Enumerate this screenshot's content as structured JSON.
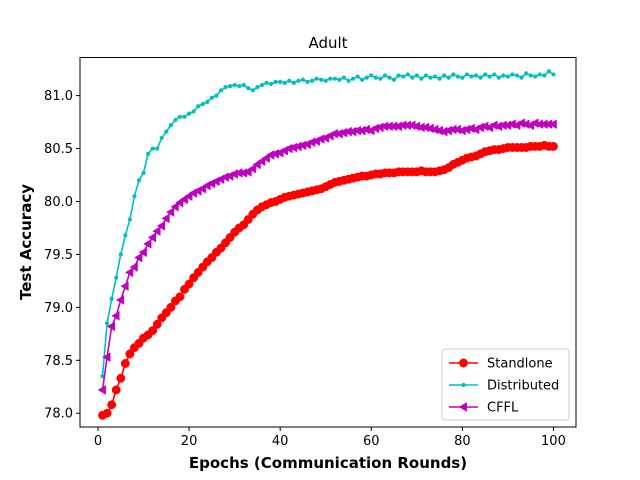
{
  "chart_data": {
    "type": "line",
    "title": "Adult",
    "xlabel": "Epochs (Communication Rounds)",
    "ylabel": "Test Accuracy",
    "xlim": [
      -3.95,
      104.95
    ],
    "ylim": [
      77.87,
      81.36
    ],
    "xticks": [
      0,
      20,
      40,
      60,
      80,
      100
    ],
    "yticks": [
      78.0,
      78.5,
      79.0,
      79.5,
      80.0,
      80.5,
      81.0
    ],
    "ytick_labels": [
      "78.0",
      "78.5",
      "79.0",
      "79.5",
      "80.0",
      "80.5",
      "81.0"
    ],
    "grid": false,
    "legend_position": "lower-right",
    "series": [
      {
        "name": "Standlone",
        "color": "#ff0000",
        "marker": "circle",
        "x_start": 1,
        "x_step": 1,
        "values": [
          77.98,
          78.0,
          78.08,
          78.22,
          78.33,
          78.47,
          78.56,
          78.62,
          78.66,
          78.71,
          78.74,
          78.78,
          78.84,
          78.9,
          78.95,
          79.0,
          79.06,
          79.1,
          79.17,
          79.22,
          79.28,
          79.33,
          79.38,
          79.43,
          79.47,
          79.52,
          79.56,
          79.61,
          79.66,
          79.71,
          79.75,
          79.78,
          79.83,
          79.88,
          79.92,
          79.95,
          79.97,
          79.99,
          80.0,
          80.02,
          80.04,
          80.05,
          80.06,
          80.07,
          80.08,
          80.09,
          80.1,
          80.11,
          80.12,
          80.14,
          80.16,
          80.18,
          80.19,
          80.2,
          80.21,
          80.22,
          80.23,
          80.24,
          80.24,
          80.25,
          80.26,
          80.26,
          80.27,
          80.27,
          80.27,
          80.28,
          80.28,
          80.28,
          80.28,
          80.28,
          80.29,
          80.28,
          80.28,
          80.28,
          80.29,
          80.3,
          80.32,
          80.35,
          80.37,
          80.39,
          80.41,
          80.42,
          80.43,
          80.45,
          80.47,
          80.48,
          80.49,
          80.49,
          80.5,
          80.51,
          80.51,
          80.51,
          80.51,
          80.51,
          80.52,
          80.52,
          80.52,
          80.53,
          80.52,
          80.52
        ]
      },
      {
        "name": "Distributed",
        "color": "#00bfbf",
        "marker": "point",
        "x_start": 1,
        "x_step": 1,
        "values": [
          78.35,
          78.85,
          79.08,
          79.28,
          79.5,
          79.68,
          79.83,
          80.05,
          80.2,
          80.27,
          80.45,
          80.5,
          80.5,
          80.6,
          80.66,
          80.72,
          80.77,
          80.8,
          80.8,
          80.83,
          80.85,
          80.9,
          80.92,
          80.94,
          80.98,
          81.0,
          81.05,
          81.08,
          81.09,
          81.1,
          81.09,
          81.1,
          81.07,
          81.05,
          81.08,
          81.1,
          81.12,
          81.11,
          81.13,
          81.13,
          81.12,
          81.14,
          81.12,
          81.14,
          81.15,
          81.13,
          81.14,
          81.16,
          81.15,
          81.14,
          81.16,
          81.16,
          81.15,
          81.17,
          81.14,
          81.16,
          81.18,
          81.15,
          81.17,
          81.19,
          81.17,
          81.16,
          81.19,
          81.17,
          81.15,
          81.19,
          81.18,
          81.2,
          81.17,
          81.19,
          81.16,
          81.19,
          81.17,
          81.18,
          81.16,
          81.19,
          81.17,
          81.2,
          81.18,
          81.17,
          81.2,
          81.18,
          81.19,
          81.17,
          81.2,
          81.18,
          81.2,
          81.17,
          81.19,
          81.18,
          81.2,
          81.19,
          81.17,
          81.21,
          81.19,
          81.18,
          81.2,
          81.19,
          81.23,
          81.2
        ]
      },
      {
        "name": "CFFL",
        "color": "#bf00bf",
        "marker": "triangle-left",
        "x_start": 1,
        "x_step": 1,
        "values": [
          78.22,
          78.53,
          78.82,
          78.92,
          79.07,
          79.2,
          79.33,
          79.38,
          79.47,
          79.52,
          79.6,
          79.66,
          79.72,
          79.77,
          79.84,
          79.9,
          79.95,
          79.99,
          80.02,
          80.05,
          80.08,
          80.1,
          80.12,
          80.15,
          80.17,
          80.19,
          80.21,
          80.23,
          80.24,
          80.26,
          80.27,
          80.27,
          80.28,
          80.31,
          80.35,
          80.38,
          80.41,
          80.44,
          80.45,
          80.46,
          80.48,
          80.5,
          80.51,
          80.52,
          80.53,
          80.54,
          80.56,
          80.57,
          80.59,
          80.6,
          80.62,
          80.64,
          80.64,
          80.65,
          80.66,
          80.66,
          80.67,
          80.67,
          80.68,
          80.67,
          80.69,
          80.7,
          80.71,
          80.71,
          80.71,
          80.71,
          80.72,
          80.72,
          80.72,
          80.71,
          80.7,
          80.7,
          80.69,
          80.68,
          80.67,
          80.66,
          80.67,
          80.68,
          80.68,
          80.67,
          80.68,
          80.69,
          80.68,
          80.7,
          80.71,
          80.7,
          80.72,
          80.71,
          80.72,
          80.72,
          80.73,
          80.72,
          80.74,
          80.73,
          80.72,
          80.74,
          80.73,
          80.73,
          80.73,
          80.73
        ]
      }
    ]
  }
}
